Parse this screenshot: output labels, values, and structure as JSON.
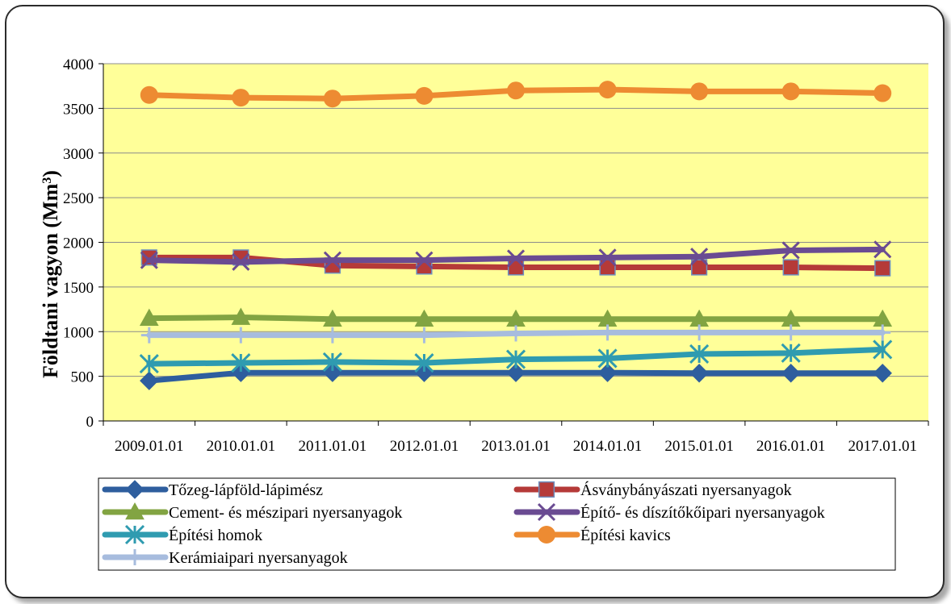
{
  "chart_data": {
    "type": "line",
    "title": "",
    "ylabel_main": "Földtani vagyon (Mm",
    "ylabel_sup": "3",
    "ylabel_end": ")",
    "xlabel": "",
    "ylim": [
      0,
      4000
    ],
    "yticks": [
      0,
      500,
      1000,
      1500,
      2000,
      2500,
      3000,
      3500,
      4000
    ],
    "categories": [
      "2009.01.01",
      "2010.01.01",
      "2011.01.01",
      "2012.01.01",
      "2013.01.01",
      "2014.01.01",
      "2015.01.01",
      "2016.01.01",
      "2017.01.01"
    ],
    "plot_background": "#ffff99",
    "grid": "horizontal",
    "legend_position": "bottom",
    "series": [
      {
        "name": "Tőzeg-lápföld-lápimész",
        "color": "#2e5e9e",
        "marker": "diamond",
        "values": [
          450,
          540,
          540,
          540,
          540,
          540,
          535,
          535,
          535
        ]
      },
      {
        "name": "Ásványbányászati nyersanyagok",
        "color": "#b53a38",
        "marker": "square",
        "values": [
          1830,
          1830,
          1740,
          1730,
          1720,
          1720,
          1720,
          1720,
          1710
        ]
      },
      {
        "name": "Cement- és mészipari nyersanyagok",
        "color": "#82a442",
        "marker": "triangle",
        "values": [
          1150,
          1160,
          1140,
          1140,
          1140,
          1140,
          1140,
          1140,
          1140
        ]
      },
      {
        "name": "Építő- és díszítőkőipari nyersanyagok",
        "color": "#6a4b92",
        "marker": "x",
        "values": [
          1800,
          1780,
          1800,
          1800,
          1820,
          1830,
          1840,
          1910,
          1920
        ]
      },
      {
        "name": "Építési homok",
        "color": "#2f9bb0",
        "marker": "star",
        "values": [
          640,
          650,
          660,
          650,
          690,
          700,
          750,
          760,
          800
        ]
      },
      {
        "name": "Építési kavics",
        "color": "#ed8b32",
        "marker": "circle",
        "values": [
          3650,
          3620,
          3610,
          3640,
          3700,
          3710,
          3690,
          3690,
          3670
        ]
      },
      {
        "name": "Kerámiaipari nyersanyagok",
        "color": "#a7bcde",
        "marker": "plus",
        "values": [
          960,
          960,
          960,
          960,
          980,
          990,
          990,
          990,
          990
        ]
      }
    ]
  }
}
